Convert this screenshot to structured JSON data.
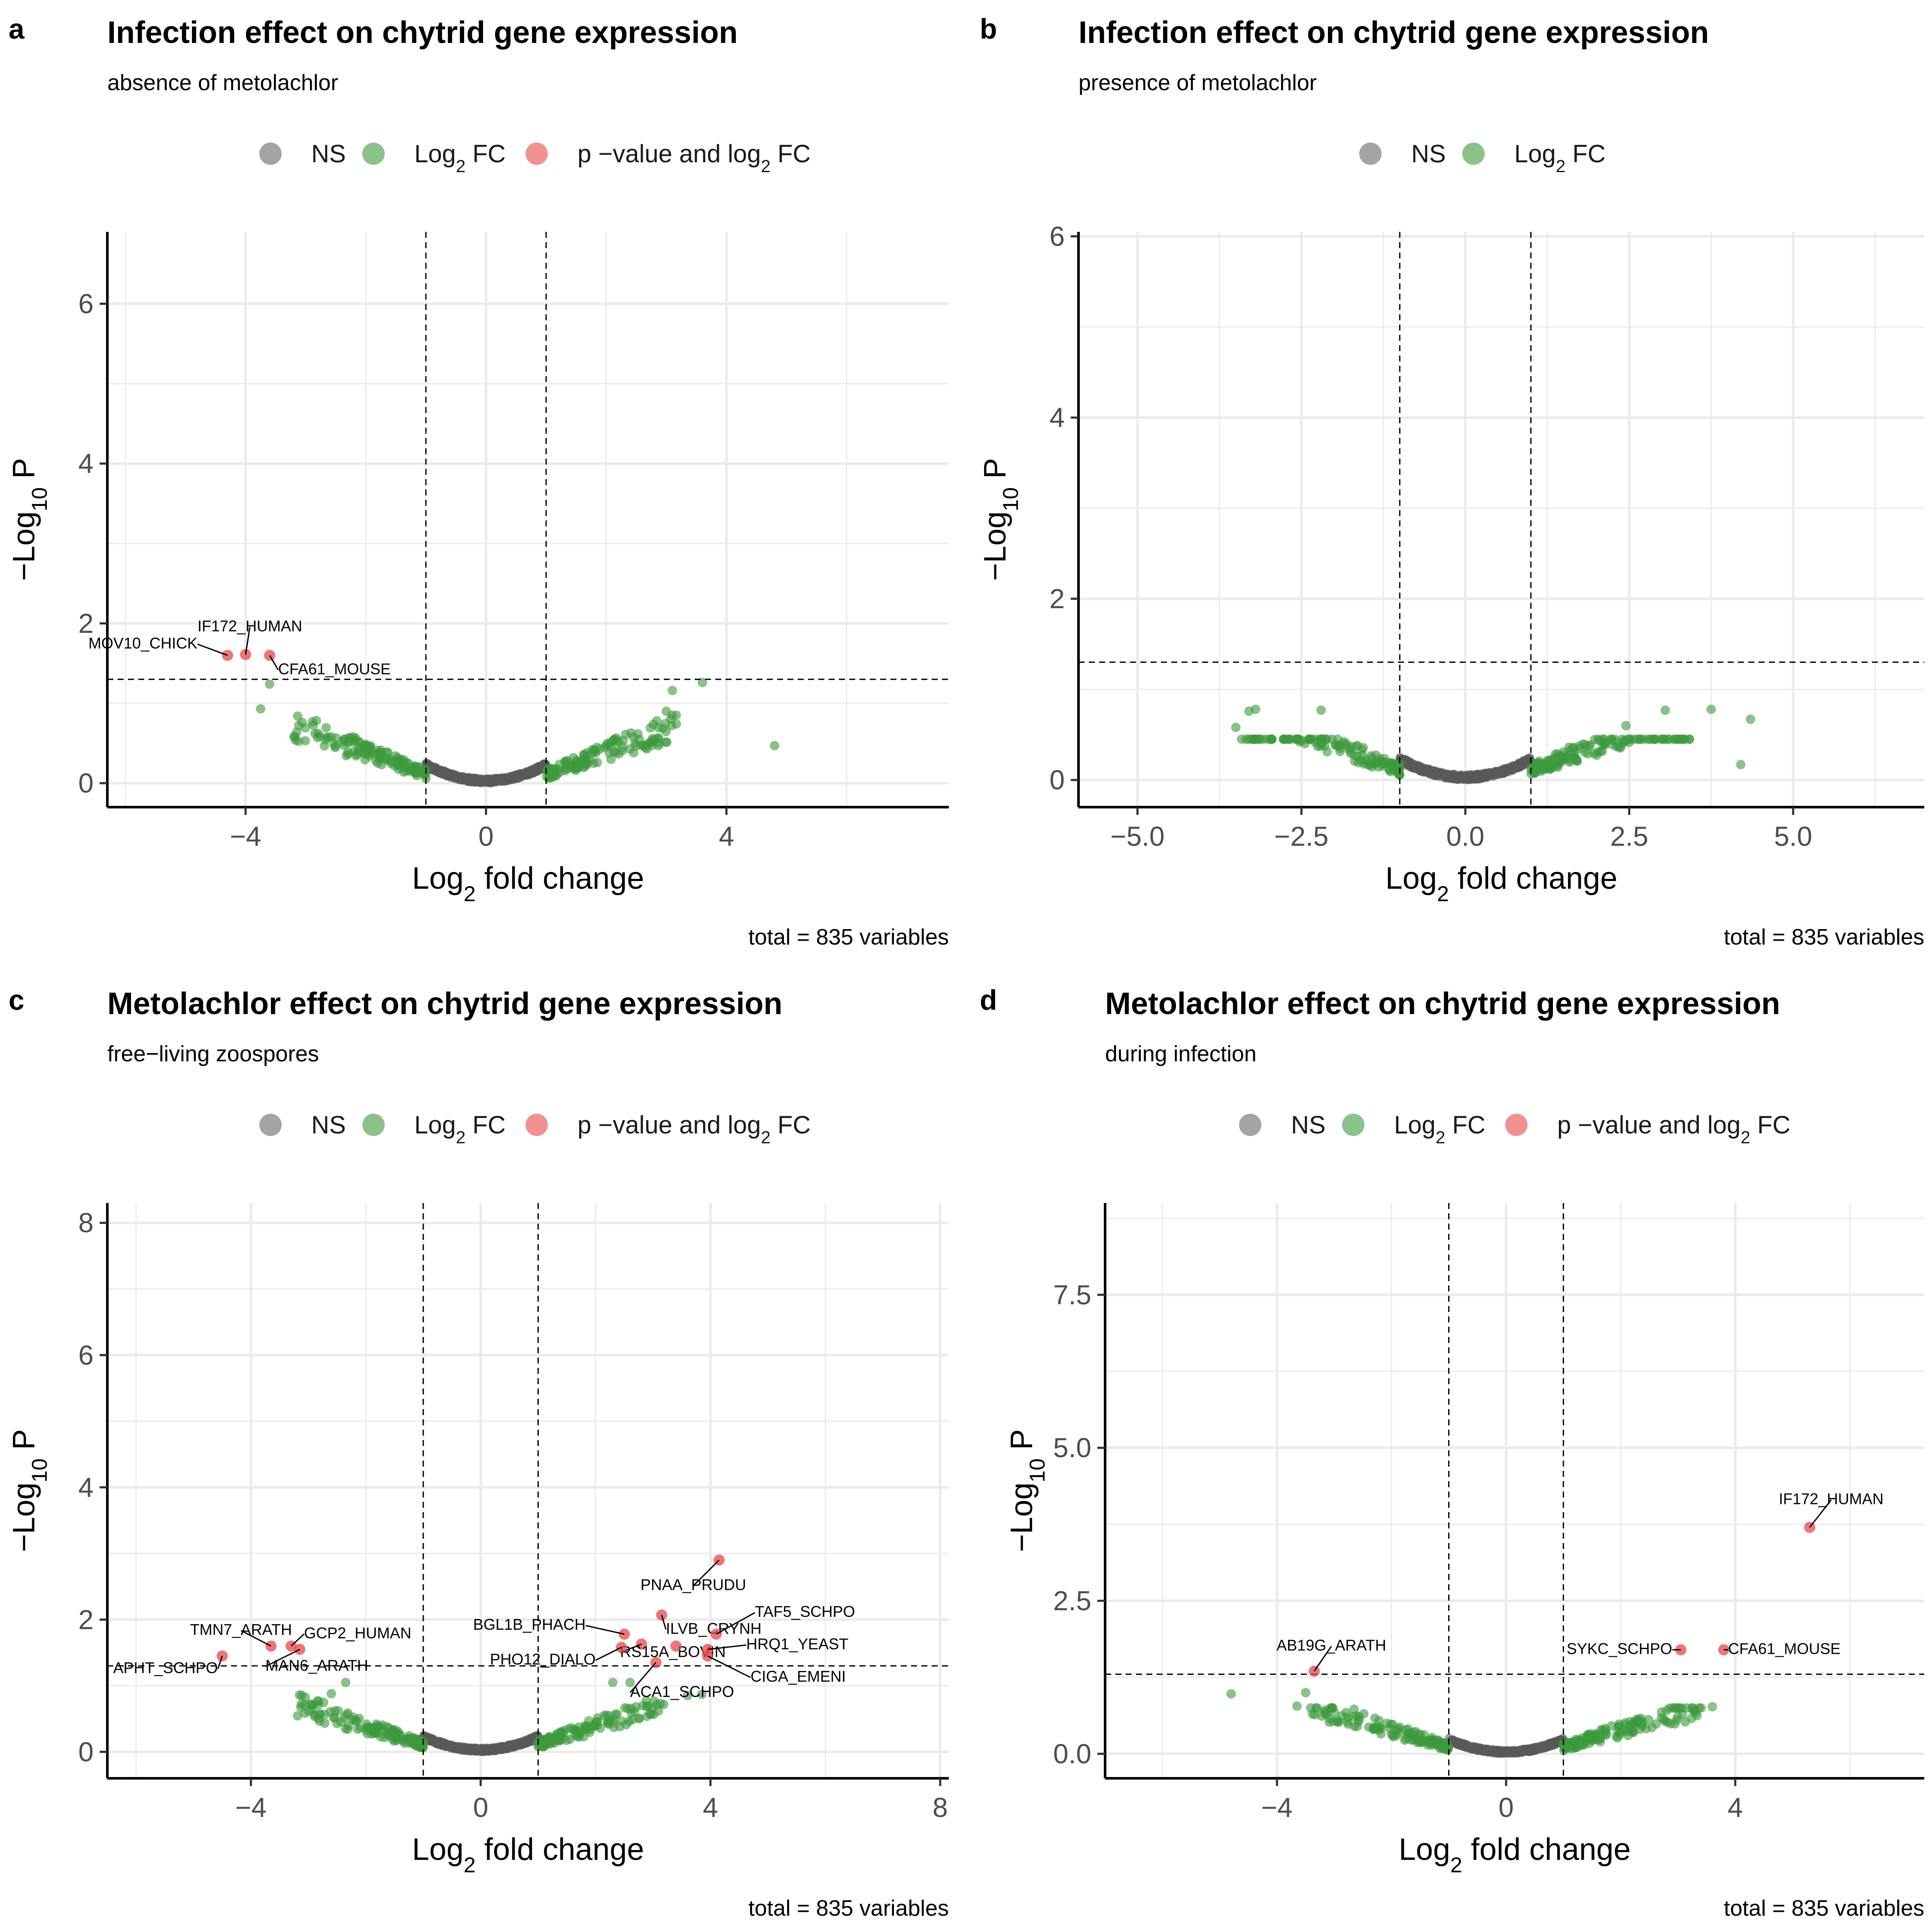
{
  "legend_labels": {
    "ns": "NS",
    "fc": "Log2 FC",
    "both": "p −value and log2 FC"
  },
  "axis_titles": {
    "x": "Log2 fold change",
    "y": "−Log10 P"
  },
  "colors": {
    "ns": "#595959",
    "fc": "#3c9a3c",
    "both": "#e8474a",
    "grid": "#ebebeb",
    "axis": "#000000"
  },
  "chart_data": [
    {
      "panel": "a",
      "type": "scatter",
      "title": "Infection effect on chytrid gene expression",
      "subtitle": "absence of metolachlor",
      "caption": "total = 835 variables",
      "xlabel": "Log2 fold change",
      "ylabel": "−Log10 P",
      "xlim": [
        -6.3,
        7.7
      ],
      "ylim": [
        -0.3,
        6.9
      ],
      "xticks": [
        -4,
        0,
        4
      ],
      "yticks": [
        0,
        2,
        4,
        6
      ],
      "fc_cutoff": 1,
      "p_cutoff": 1.3,
      "grid": true,
      "legend": [
        "ns",
        "fc",
        "both"
      ],
      "legend_position": "top",
      "significant": [
        {
          "x": -4.3,
          "y": 1.6,
          "label": "MOV10_CHICK"
        },
        {
          "x": -4.0,
          "y": 1.61,
          "label": "IF172_HUMAN"
        },
        {
          "x": -3.6,
          "y": 1.6,
          "label": "CFA61_MOUSE"
        }
      ],
      "fc_points": [
        {
          "x": -3.6,
          "y": 1.24
        },
        {
          "x": -3.75,
          "y": 0.93
        },
        {
          "x": 4.8,
          "y": 0.47
        },
        {
          "x": 3.6,
          "y": 1.26
        },
        {
          "x": 3.1,
          "y": 1.16
        },
        {
          "x": 3.0,
          "y": 0.9
        }
      ],
      "fc_seed": 11,
      "ns_seed": 12,
      "fc_spread": 1.0,
      "fc_maxy": 0.85
    },
    {
      "panel": "b",
      "type": "scatter",
      "title": "Infection effect on chytrid gene expression",
      "subtitle": "presence of metolachlor",
      "caption": "total = 835 variables",
      "xlabel": "Log2 fold change",
      "ylabel": "−Log10 P",
      "xlim": [
        -5.9,
        7.0
      ],
      "ylim": [
        -0.3,
        6.05
      ],
      "xticks": [
        -5.0,
        -2.5,
        0.0,
        2.5,
        5.0
      ],
      "xtick_labels": [
        "−5.0",
        "−2.5",
        "0.0",
        "2.5",
        "5.0"
      ],
      "yticks": [
        0,
        2,
        4,
        6
      ],
      "fc_cutoff": 1,
      "p_cutoff": 1.3,
      "grid": true,
      "legend": [
        "ns",
        "fc"
      ],
      "legend_position": "top",
      "significant": [],
      "fc_points": [
        {
          "x": -3.2,
          "y": 0.78
        },
        {
          "x": -3.3,
          "y": 0.76
        },
        {
          "x": -3.5,
          "y": 0.58
        },
        {
          "x": -2.2,
          "y": 0.77
        },
        {
          "x": 3.05,
          "y": 0.77
        },
        {
          "x": 3.75,
          "y": 0.78
        },
        {
          "x": 4.35,
          "y": 0.67
        },
        {
          "x": 4.2,
          "y": 0.17
        },
        {
          "x": 2.45,
          "y": 0.6
        }
      ],
      "fc_seed": 21,
      "ns_seed": 22,
      "fc_spread": 1.1,
      "fc_maxy": 0.45
    },
    {
      "panel": "c",
      "type": "scatter",
      "title": "Metolachlor effect on chytrid gene expression",
      "subtitle": "free−living zoospores",
      "caption": "total = 835 variables",
      "xlabel": "Log2 fold change",
      "ylabel": "−Log10 P",
      "xlim": [
        -6.5,
        8.15
      ],
      "ylim": [
        -0.4,
        8.3
      ],
      "xticks": [
        -4,
        0,
        4,
        8
      ],
      "yticks": [
        0,
        2,
        4,
        6,
        8
      ],
      "fc_cutoff": 1,
      "p_cutoff": 1.3,
      "grid": true,
      "legend": [
        "ns",
        "fc",
        "both"
      ],
      "legend_position": "top",
      "significant": [
        {
          "x": -4.5,
          "y": 1.45,
          "label": "APHT_SCHPO"
        },
        {
          "x": -3.65,
          "y": 1.6,
          "label": "TMN7_ARATH"
        },
        {
          "x": -3.3,
          "y": 1.6,
          "label": "GCP2_HUMAN"
        },
        {
          "x": -3.15,
          "y": 1.55,
          "label": "MAN6_ARATH"
        },
        {
          "x": 4.15,
          "y": 2.9,
          "label": "PNAA_PRUDU"
        },
        {
          "x": 3.15,
          "y": 2.07,
          "label": "ILVB_CRYNH"
        },
        {
          "x": 2.5,
          "y": 1.78,
          "label": "BGL1B_PHACH"
        },
        {
          "x": 2.8,
          "y": 1.63,
          "label": "RS15A_BOVIN"
        },
        {
          "x": 4.1,
          "y": 1.78,
          "label": "TAF5_SCHPO"
        },
        {
          "x": 3.95,
          "y": 1.55,
          "label": "HRQ1_YEAST"
        },
        {
          "x": 2.45,
          "y": 1.58,
          "label": "PHO12_DIALO"
        },
        {
          "x": 3.95,
          "y": 1.45,
          "label": "CIGA_EMENI"
        },
        {
          "x": 3.05,
          "y": 1.35,
          "label": "ACA1_SCHPO"
        },
        {
          "x": 3.4,
          "y": 1.6
        }
      ],
      "fc_points": [
        {
          "x": -2.35,
          "y": 1.05
        },
        {
          "x": -2.6,
          "y": 0.88
        },
        {
          "x": 3.6,
          "y": 0.85
        },
        {
          "x": 3.85,
          "y": 0.87
        },
        {
          "x": 2.3,
          "y": 1.05
        },
        {
          "x": 2.6,
          "y": 1.05
        }
      ],
      "fc_seed": 31,
      "ns_seed": 32,
      "fc_spread": 1.0,
      "fc_maxy": 0.95
    },
    {
      "panel": "d",
      "type": "scatter",
      "title": "Metolachlor effect on chytrid gene expression",
      "subtitle": "during infection",
      "caption": "total = 835 variables",
      "xlabel": "Log2 fold change",
      "ylabel": "−Log10 P",
      "xlim": [
        -7.0,
        7.3
      ],
      "ylim": [
        -0.4,
        9.0
      ],
      "xticks": [
        -4,
        0,
        4
      ],
      "yticks": [
        0.0,
        2.5,
        5.0,
        7.5
      ],
      "ytick_labels": [
        "0.0",
        "2.5",
        "5.0",
        "7.5"
      ],
      "fc_cutoff": 1,
      "p_cutoff": 1.3,
      "grid": true,
      "legend": [
        "ns",
        "fc",
        "both"
      ],
      "legend_position": "top",
      "significant": [
        {
          "x": 5.3,
          "y": 3.7,
          "label": "IF172_HUMAN"
        },
        {
          "x": 3.05,
          "y": 1.7,
          "label": "SYKC_SCHPO"
        },
        {
          "x": 3.8,
          "y": 1.7,
          "label": "CFA61_MOUSE"
        },
        {
          "x": -3.35,
          "y": 1.35,
          "label": "AB19G_ARATH"
        }
      ],
      "fc_points": [
        {
          "x": -4.8,
          "y": 0.98
        },
        {
          "x": -3.5,
          "y": 1.0
        },
        {
          "x": -3.65,
          "y": 0.78
        },
        {
          "x": 3.6,
          "y": 0.77
        }
      ],
      "fc_seed": 41,
      "ns_seed": 42,
      "fc_spread": 1.1,
      "fc_maxy": 0.75
    }
  ]
}
